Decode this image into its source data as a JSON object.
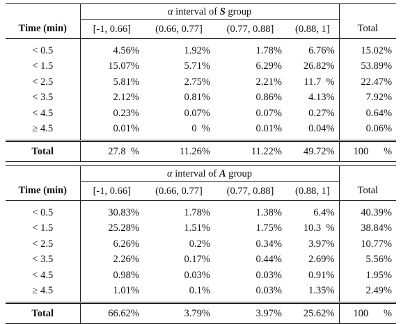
{
  "tables": [
    {
      "group_label": "S",
      "header": {
        "interval_title_prefix": "interval of",
        "interval_symbol": "α",
        "group_suffix": "group",
        "time_label": "Time (min)",
        "columns": [
          "[-1, 0.66]",
          "(0.66, 0.77]",
          "(0.77, 0.88]",
          "(0.88, 1]"
        ],
        "total_label": "Total"
      },
      "rows": [
        {
          "time": "< 0.5",
          "values": [
            "4.56%",
            "1.92%",
            "1.78%",
            "6.76%"
          ],
          "total": "15.02%"
        },
        {
          "time": "< 1.5",
          "values": [
            "15.07%",
            "5.71%",
            "6.29%",
            "26.82%"
          ],
          "total": "53.89%"
        },
        {
          "time": "< 2.5",
          "values": [
            "5.81%",
            "2.75%",
            "2.21%",
            "11.7  %"
          ],
          "total": "22.47%"
        },
        {
          "time": "< 3.5",
          "values": [
            "2.12%",
            "0.81%",
            "0.86%",
            "4.13%"
          ],
          "total": "7.92%"
        },
        {
          "time": "< 4.5",
          "values": [
            "0.23%",
            "0.07%",
            "0.07%",
            "0.27%"
          ],
          "total": "0.64%"
        },
        {
          "time": "≥ 4.5",
          "values": [
            "0.01%",
            "0  %",
            "0.01%",
            "0.04%"
          ],
          "total": "0.06%"
        }
      ],
      "total_row": {
        "label": "Total",
        "values": [
          "27.8  %",
          "11.26%",
          "11.22%",
          "49.72%"
        ],
        "total": "100      %"
      }
    },
    {
      "group_label": "A",
      "header": {
        "interval_title_prefix": "interval of",
        "interval_symbol": "α",
        "group_suffix": "group",
        "time_label": "Time (min)",
        "columns": [
          "[-1, 0.66]",
          "(0.66, 0.77]",
          "(0.77, 0.88]",
          "(0.88, 1]"
        ],
        "total_label": "Total"
      },
      "rows": [
        {
          "time": "< 0.5",
          "values": [
            "30.83%",
            "1.78%",
            "1.38%",
            "6.4%"
          ],
          "total": "40.39%"
        },
        {
          "time": "< 1.5",
          "values": [
            "25.28%",
            "1.51%",
            "1.75%",
            "10.3  %"
          ],
          "total": "38.84%"
        },
        {
          "time": "< 2.5",
          "values": [
            "6.26%",
            "0.2%",
            "0.34%",
            "3.97%"
          ],
          "total": "10.77%"
        },
        {
          "time": "< 3.5",
          "values": [
            "2.26%",
            "0.17%",
            "0.44%",
            "2.69%"
          ],
          "total": "5.56%"
        },
        {
          "time": "< 4.5",
          "values": [
            "0.98%",
            "0.03%",
            "0.03%",
            "0.91%"
          ],
          "total": "1.95%"
        },
        {
          "time": "≥ 4.5",
          "values": [
            "1.01%",
            "0.1%",
            "0.03%",
            "1.35%"
          ],
          "total": "2.49%"
        }
      ],
      "total_row": {
        "label": "Total",
        "values": [
          "66.62%",
          "3.79%",
          "3.97%",
          "25.62%"
        ],
        "total": "100      %"
      }
    }
  ]
}
